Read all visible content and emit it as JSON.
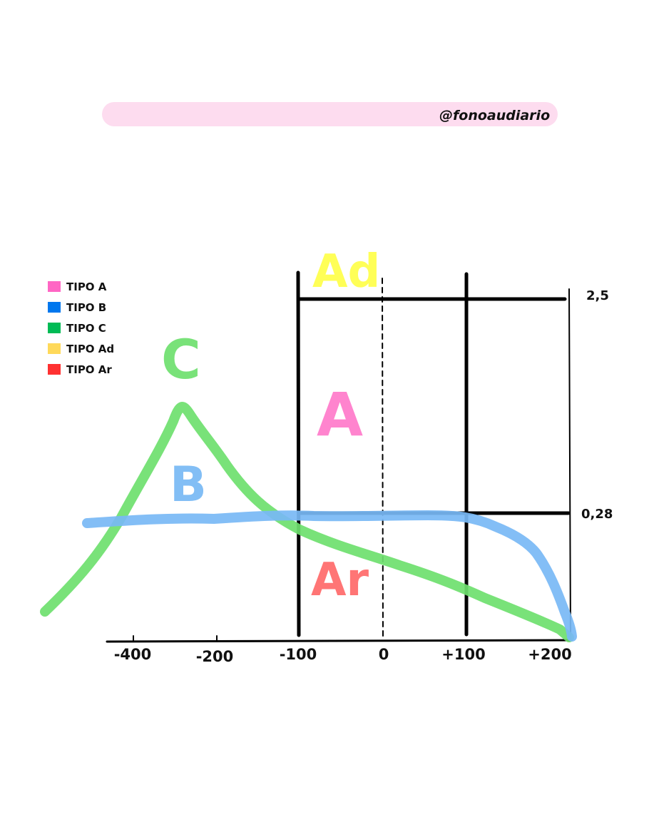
{
  "header": {
    "handle": "@fonoaudiario",
    "banner_color": "#fddcef"
  },
  "legend": [
    {
      "label": "TIPO A",
      "color": "#ff66c4"
    },
    {
      "label": "TIPO B",
      "color": "#0077ee"
    },
    {
      "label": "TIPO C",
      "color": "#00bb55"
    },
    {
      "label": "TIPO Ad",
      "color": "#ffd95a"
    },
    {
      "label": "TIPO Ar",
      "color": "#ff3131"
    }
  ],
  "axis": {
    "ticks": [
      "-400",
      "-200",
      "-100",
      "0",
      "+100",
      "+200"
    ],
    "compliance_upper": "2,5",
    "compliance_lower": "0,28"
  },
  "regions": [
    {
      "key": "ad",
      "label": "Ad",
      "color": "#ffff3a"
    },
    {
      "key": "a",
      "label": "A",
      "color": "#ff6fc6"
    },
    {
      "key": "ar",
      "label": "Ar",
      "color": "#ff5e5e"
    }
  ],
  "curves": [
    {
      "key": "c",
      "label": "C",
      "color": "#6ee06e"
    },
    {
      "key": "b",
      "label": "B",
      "color": "#78b9f5"
    }
  ]
}
